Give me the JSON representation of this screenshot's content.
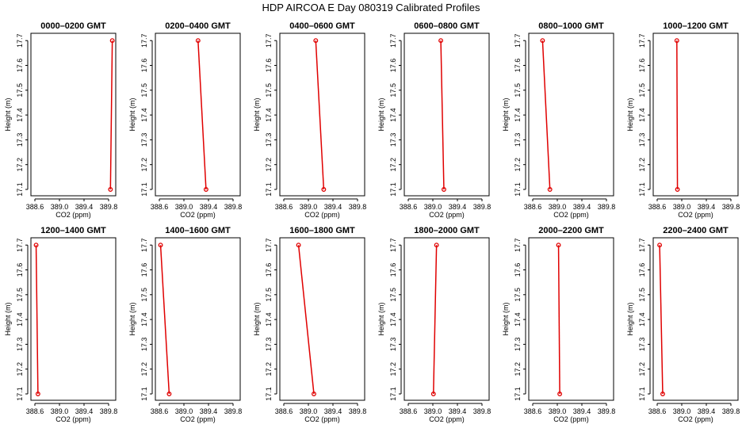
{
  "figure": {
    "title": "HDP  AIRCOA E  Day 080319  Calibrated Profiles",
    "line_color": "#e00000",
    "marker_color": "#e00000",
    "axis_color": "#000000"
  },
  "chart_data": [
    {
      "type": "line",
      "title": "0000–0200 GMT",
      "xlabel": "CO2 (ppm)",
      "ylabel": "Height (m)",
      "xlim": [
        388.6,
        389.9
      ],
      "ylim": [
        17.08,
        17.72
      ],
      "xticks": [
        "388.6",
        "389.0",
        "389.4",
        "389.8"
      ],
      "yticks": [
        "17.1",
        "17.2",
        "17.3",
        "17.4",
        "17.5",
        "17.6",
        "17.7"
      ],
      "x": [
        389.83,
        389.86
      ],
      "y": [
        17.1,
        17.7
      ]
    },
    {
      "type": "line",
      "title": "0200–0400 GMT",
      "xlabel": "CO2 (ppm)",
      "ylabel": "Height (m)",
      "xlim": [
        388.6,
        389.9
      ],
      "ylim": [
        17.08,
        17.72
      ],
      "xticks": [
        "388.6",
        "389.0",
        "389.4",
        "389.8"
      ],
      "yticks": [
        "17.1",
        "17.2",
        "17.3",
        "17.4",
        "17.5",
        "17.6",
        "17.7"
      ],
      "x": [
        389.36,
        389.23
      ],
      "y": [
        17.1,
        17.7
      ]
    },
    {
      "type": "line",
      "title": "0400–0600 GMT",
      "xlabel": "CO2 (ppm)",
      "ylabel": "Height (m)",
      "xlim": [
        388.6,
        389.9
      ],
      "ylim": [
        17.08,
        17.72
      ],
      "xticks": [
        "388.6",
        "389.0",
        "389.4",
        "389.8"
      ],
      "yticks": [
        "17.1",
        "17.2",
        "17.3",
        "17.4",
        "17.5",
        "17.6",
        "17.7"
      ],
      "x": [
        389.25,
        389.12
      ],
      "y": [
        17.1,
        17.7
      ]
    },
    {
      "type": "line",
      "title": "0600–0800 GMT",
      "xlabel": "CO2 (ppm)",
      "ylabel": "Height (m)",
      "xlim": [
        388.6,
        389.9
      ],
      "ylim": [
        17.08,
        17.72
      ],
      "xticks": [
        "388.6",
        "389.0",
        "389.4",
        "389.8"
      ],
      "yticks": [
        "17.1",
        "17.2",
        "17.3",
        "17.4",
        "17.5",
        "17.6",
        "17.7"
      ],
      "x": [
        389.18,
        389.13
      ],
      "y": [
        17.1,
        17.7
      ]
    },
    {
      "type": "line",
      "title": "0800–1000 GMT",
      "xlabel": "CO2 (ppm)",
      "ylabel": "Height (m)",
      "xlim": [
        388.6,
        389.9
      ],
      "ylim": [
        17.08,
        17.72
      ],
      "xticks": [
        "388.6",
        "389.0",
        "389.4",
        "389.8"
      ],
      "yticks": [
        "17.1",
        "17.2",
        "17.3",
        "17.4",
        "17.5",
        "17.6",
        "17.7"
      ],
      "x": [
        388.88,
        388.76
      ],
      "y": [
        17.1,
        17.7
      ]
    },
    {
      "type": "line",
      "title": "1000–1200 GMT",
      "xlabel": "CO2 (ppm)",
      "ylabel": "Height (m)",
      "xlim": [
        388.6,
        389.9
      ],
      "ylim": [
        17.08,
        17.72
      ],
      "xticks": [
        "388.6",
        "389.0",
        "389.4",
        "389.8"
      ],
      "yticks": [
        "17.1",
        "17.2",
        "17.3",
        "17.4",
        "17.5",
        "17.6",
        "17.7"
      ],
      "x": [
        388.93,
        388.92
      ],
      "y": [
        17.1,
        17.7
      ]
    },
    {
      "type": "line",
      "title": "1200–1400 GMT",
      "xlabel": "CO2 (ppm)",
      "ylabel": "Height (m)",
      "xlim": [
        388.6,
        389.9
      ],
      "ylim": [
        17.08,
        17.72
      ],
      "xticks": [
        "388.6",
        "389.0",
        "389.4",
        "389.8"
      ],
      "yticks": [
        "17.1",
        "17.2",
        "17.3",
        "17.4",
        "17.5",
        "17.6",
        "17.7"
      ],
      "x": [
        388.65,
        388.62
      ],
      "y": [
        17.1,
        17.7
      ]
    },
    {
      "type": "line",
      "title": "1400–1600 GMT",
      "xlabel": "CO2 (ppm)",
      "ylabel": "Height (m)",
      "xlim": [
        388.6,
        389.9
      ],
      "ylim": [
        17.08,
        17.72
      ],
      "xticks": [
        "388.6",
        "389.0",
        "389.4",
        "389.8"
      ],
      "yticks": [
        "17.1",
        "17.2",
        "17.3",
        "17.4",
        "17.5",
        "17.6",
        "17.7"
      ],
      "x": [
        388.76,
        388.62
      ],
      "y": [
        17.1,
        17.7
      ]
    },
    {
      "type": "line",
      "title": "1600–1800 GMT",
      "xlabel": "CO2 (ppm)",
      "ylabel": "Height (m)",
      "xlim": [
        388.6,
        389.9
      ],
      "ylim": [
        17.08,
        17.72
      ],
      "xticks": [
        "388.6",
        "389.0",
        "389.4",
        "389.8"
      ],
      "yticks": [
        "17.1",
        "17.2",
        "17.3",
        "17.4",
        "17.5",
        "17.6",
        "17.7"
      ],
      "x": [
        389.09,
        388.84
      ],
      "y": [
        17.1,
        17.7
      ]
    },
    {
      "type": "line",
      "title": "1800–2000 GMT",
      "xlabel": "CO2 (ppm)",
      "ylabel": "Height (m)",
      "xlim": [
        388.6,
        389.9
      ],
      "ylim": [
        17.08,
        17.72
      ],
      "xticks": [
        "388.6",
        "389.0",
        "389.4",
        "389.8"
      ],
      "yticks": [
        "17.1",
        "17.2",
        "17.3",
        "17.4",
        "17.5",
        "17.6",
        "17.7"
      ],
      "x": [
        389.01,
        389.06
      ],
      "y": [
        17.1,
        17.7
      ]
    },
    {
      "type": "line",
      "title": "2000–2200 GMT",
      "xlabel": "CO2 (ppm)",
      "ylabel": "Height (m)",
      "xlim": [
        388.6,
        389.9
      ],
      "ylim": [
        17.08,
        17.72
      ],
      "xticks": [
        "388.6",
        "389.0",
        "389.4",
        "389.8"
      ],
      "yticks": [
        "17.1",
        "17.2",
        "17.3",
        "17.4",
        "17.5",
        "17.6",
        "17.7"
      ],
      "x": [
        389.04,
        389.02
      ],
      "y": [
        17.1,
        17.7
      ]
    },
    {
      "type": "line",
      "title": "2200–2400 GMT",
      "xlabel": "CO2 (ppm)",
      "ylabel": "Height (m)",
      "xlim": [
        388.6,
        389.9
      ],
      "ylim": [
        17.08,
        17.72
      ],
      "xticks": [
        "388.6",
        "389.0",
        "389.4",
        "389.8"
      ],
      "yticks": [
        "17.1",
        "17.2",
        "17.3",
        "17.4",
        "17.5",
        "17.6",
        "17.7"
      ],
      "x": [
        388.69,
        388.64
      ],
      "y": [
        17.1,
        17.7
      ]
    }
  ]
}
